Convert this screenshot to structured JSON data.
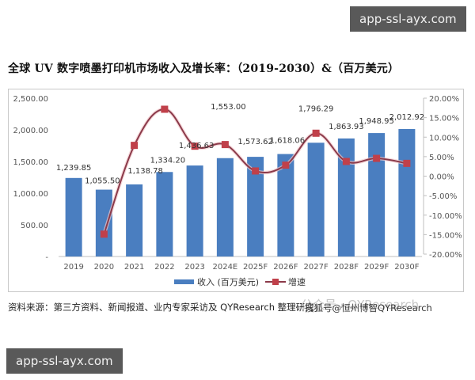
{
  "title": "全球 UV 数字喷墨打印机市场收入及增长率：（2019-2030）&（百万美元）",
  "source_note": "资料来源：第三方资料、新闻报道、业内专家采访及 QYResearch 整理研究",
  "watermark_faded": "公众号 · QYResearch",
  "watermark_overlay": "搜狐号@恒州博智QYResearch",
  "badges": {
    "top": "app-ssl-ayx.com",
    "bottom": "app-ssl-ayx.com"
  },
  "colors": {
    "bar": "#4A7EC0",
    "line": "#8B3A4A",
    "marker": "#C0404A",
    "axis_text": "#555555",
    "grid": "#d9d9d9"
  },
  "legend": {
    "bar_label": "收入 (百万美元)",
    "line_label": "增速"
  },
  "chart_data": {
    "type": "bar+line",
    "title": "全球 UV 数字喷墨打印机市场收入及增长率：（2019-2030）&（百万美元）",
    "categories": [
      "2019",
      "2020",
      "2021",
      "2022",
      "2023",
      "2024E",
      "2025F",
      "2026F",
      "2027F",
      "2028F",
      "2029F",
      "2030F"
    ],
    "series": [
      {
        "name": "收入 (百万美元)",
        "type": "bar",
        "axis": "left",
        "values": [
          1239.85,
          1055.5,
          1138.78,
          1334.2,
          1436.63,
          1553.0,
          1573.62,
          1618.06,
          1796.29,
          1863.93,
          1948.95,
          2012.92
        ],
        "labels": [
          "1,239.85",
          "1,055.50",
          "1,138.78",
          "1,334.20",
          "1,436.63",
          "1,553.00",
          "1,573.62",
          "1,618.06",
          "1,796.29",
          "1,863.93",
          "1,948.95",
          "2,012.92"
        ]
      },
      {
        "name": "增速",
        "type": "line",
        "axis": "right",
        "values": [
          null,
          -14.87,
          7.89,
          17.16,
          7.68,
          8.1,
          1.33,
          2.82,
          11.01,
          3.77,
          4.56,
          3.28
        ]
      }
    ],
    "left_axis": {
      "ticks": [
        "-",
        "500.00",
        "1,000.00",
        "1,500.00",
        "2,000.00",
        "2,500.00"
      ],
      "range": [
        0,
        2500
      ]
    },
    "right_axis": {
      "ticks": [
        "-20.00%",
        "-15.00%",
        "-10.00%",
        "-5.00%",
        "0.00%",
        "5.00%",
        "10.00%",
        "15.00%",
        "20.00%"
      ],
      "range": [
        -20,
        20
      ]
    },
    "grid": false,
    "legend_position": "bottom"
  }
}
